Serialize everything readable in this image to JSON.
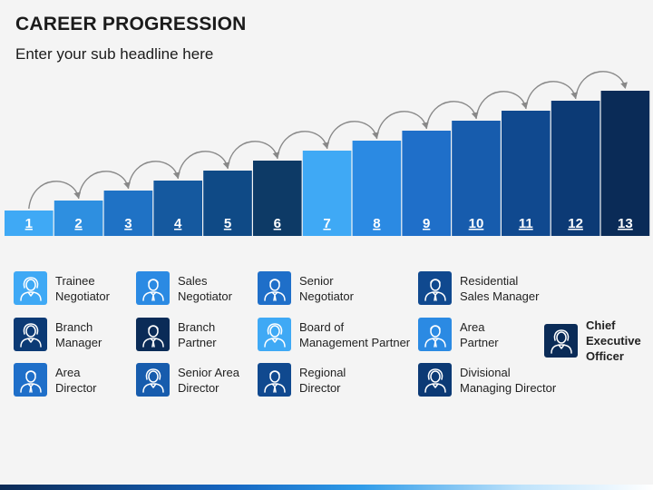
{
  "title": "CAREER PROGRESSION",
  "subtitle": "Enter your sub headline here",
  "colors": {
    "c1": "#3fa9f5",
    "c2": "#2e8fe0",
    "c3": "#1f72c5",
    "c4": "#15599f",
    "c5": "#0f4a86",
    "c6": "#0d3a66",
    "c7": "#3fa9f5",
    "c8": "#2b8ae3",
    "c9": "#1f6fc9",
    "c10": "#175cad",
    "c11": "#10498f",
    "c12": "#0c3a75",
    "c13": "#0a2b57",
    "arrow": "#888888",
    "bottom_bar": "#1565c0"
  },
  "steps": [
    {
      "label": "1",
      "level": 1,
      "color": "#3fa9f5"
    },
    {
      "label": "2",
      "level": 2,
      "color": "#2e8fe0"
    },
    {
      "label": "3",
      "level": 3,
      "color": "#1f72c5"
    },
    {
      "label": "4",
      "level": 4,
      "color": "#15599f"
    },
    {
      "label": "5",
      "level": 5,
      "color": "#0f4a86"
    },
    {
      "label": "6",
      "level": 6,
      "color": "#0d3a66"
    },
    {
      "label": "7",
      "level": 7,
      "color": "#3fa9f5"
    },
    {
      "label": "8",
      "level": 8,
      "color": "#2b8ae3"
    },
    {
      "label": "9",
      "level": 9,
      "color": "#1f6fc9"
    },
    {
      "label": "10",
      "level": 10,
      "color": "#175cad"
    },
    {
      "label": "11",
      "level": 11,
      "color": "#10498f"
    },
    {
      "label": "12",
      "level": 12,
      "color": "#0c3a75"
    },
    {
      "label": "13",
      "level": 13,
      "color": "#0a2b57"
    }
  ],
  "roles": [
    {
      "label": "Trainee\nNegotiator",
      "icon": "female-person-icon",
      "color": "#3fa9f5",
      "bold": false
    },
    {
      "label": "Sales\nNegotiator",
      "icon": "male-person-icon",
      "color": "#2b8ae3",
      "bold": false
    },
    {
      "label": "Senior\nNegotiator",
      "icon": "male-person-icon",
      "color": "#1f6fc9",
      "bold": false
    },
    {
      "label": "Residential\nSales Manager",
      "icon": "male-person-icon",
      "color": "#10498f",
      "bold": false
    },
    {
      "label": "Branch\nManager",
      "icon": "female-person-icon",
      "color": "#0c3a75",
      "bold": false
    },
    {
      "label": "Branch\nPartner",
      "icon": "male-person-icon",
      "color": "#0a2b57",
      "bold": false
    },
    {
      "label": "Board of\nManagement Partner",
      "icon": "female-person-icon",
      "color": "#3fa9f5",
      "bold": false
    },
    {
      "label": "Area\nPartner",
      "icon": "male-person-icon",
      "color": "#2b8ae3",
      "bold": false
    },
    {
      "label": "Chief\nExecutive\nOfficer",
      "icon": "female-person-icon",
      "color": "#0a2b57",
      "bold": true
    },
    {
      "label": "Area\nDirector",
      "icon": "male-person-icon",
      "color": "#1f6fc9",
      "bold": false
    },
    {
      "label": "Senior Area\nDirector",
      "icon": "female-person-icon",
      "color": "#175cad",
      "bold": false
    },
    {
      "label": "Regional\nDirector",
      "icon": "male-person-icon",
      "color": "#10498f",
      "bold": false
    },
    {
      "label": "Divisional\nManaging Director",
      "icon": "female-person-icon",
      "color": "#0c3a75",
      "bold": false
    }
  ]
}
